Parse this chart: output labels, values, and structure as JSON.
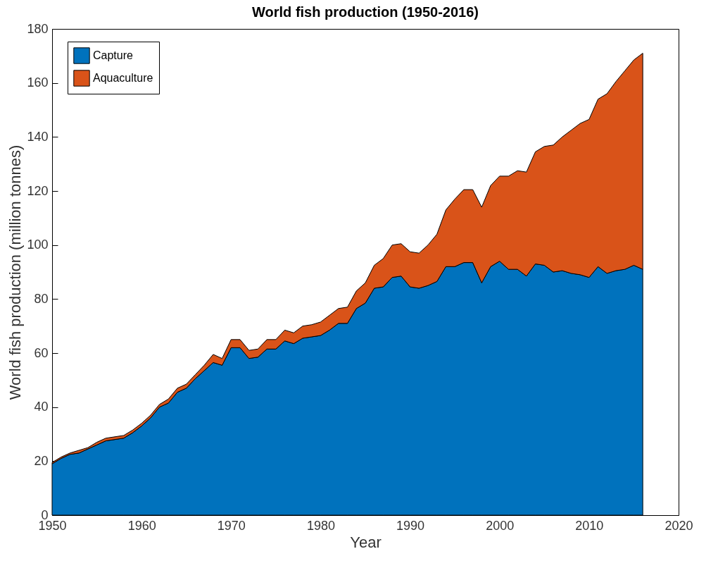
{
  "chart_data": {
    "type": "area",
    "title": "World fish production (1950-2016)",
    "xlabel": "Year",
    "ylabel": "World fish production (million tonnes)",
    "stacked": true,
    "legend": "top left",
    "x": [
      1950,
      1951,
      1952,
      1953,
      1954,
      1955,
      1956,
      1957,
      1958,
      1959,
      1960,
      1961,
      1962,
      1963,
      1964,
      1965,
      1966,
      1967,
      1968,
      1969,
      1970,
      1971,
      1972,
      1973,
      1974,
      1975,
      1976,
      1977,
      1978,
      1979,
      1980,
      1981,
      1982,
      1983,
      1984,
      1985,
      1986,
      1987,
      1988,
      1989,
      1990,
      1991,
      1992,
      1993,
      1994,
      1995,
      1996,
      1997,
      1998,
      1999,
      2000,
      2001,
      2002,
      2003,
      2004,
      2005,
      2006,
      2007,
      2008,
      2009,
      2010,
      2011,
      2012,
      2013,
      2014,
      2015,
      2016
    ],
    "series": [
      {
        "name": "Capture",
        "color": "#0072bd",
        "values": [
          19,
          21,
          22.5,
          23,
          24.5,
          26,
          27.5,
          28,
          28.5,
          30.5,
          33,
          36,
          40,
          41.5,
          45.5,
          47,
          50.5,
          53.5,
          56.5,
          55.5,
          62,
          62,
          58,
          58.5,
          61.5,
          61.5,
          64.5,
          63.5,
          65.5,
          66,
          66.5,
          68.5,
          71,
          71,
          76.5,
          78.5,
          84,
          84.5,
          88,
          88.5,
          84.5,
          84,
          85,
          86.5,
          92,
          92,
          93.5,
          93.5,
          86,
          92,
          94,
          91,
          91,
          88.5,
          93,
          92.5,
          90,
          90.5,
          89.5,
          89,
          88,
          92,
          89.5,
          90.5,
          91,
          92.5,
          91
        ]
      },
      {
        "name": "Aquaculture",
        "color": "#d95319",
        "values": [
          0.5,
          0.5,
          0.5,
          1,
          0.5,
          1,
          1,
          1,
          1,
          1,
          1,
          1,
          1,
          1.5,
          1.5,
          1.5,
          1.5,
          2,
          3,
          2.5,
          3,
          3,
          3,
          3,
          3.5,
          3.5,
          4,
          4,
          4.5,
          4.5,
          5,
          5.5,
          5.5,
          6,
          6.5,
          7.5,
          8.5,
          10.5,
          12,
          12,
          13,
          13,
          15,
          17.5,
          21,
          25,
          27,
          27,
          28,
          30,
          31.5,
          34.5,
          36.5,
          38.5,
          41.5,
          44,
          47,
          49.5,
          53,
          56,
          58.5,
          62,
          66.5,
          70,
          73.5,
          76,
          80
        ]
      }
    ],
    "xlim": [
      1950,
      2020
    ],
    "xticks": [
      1950,
      1960,
      1970,
      1980,
      1990,
      2000,
      2010,
      2020
    ],
    "ylim": [
      0,
      180
    ],
    "yticks": [
      0,
      20,
      40,
      60,
      80,
      100,
      120,
      140,
      160,
      180
    ]
  }
}
